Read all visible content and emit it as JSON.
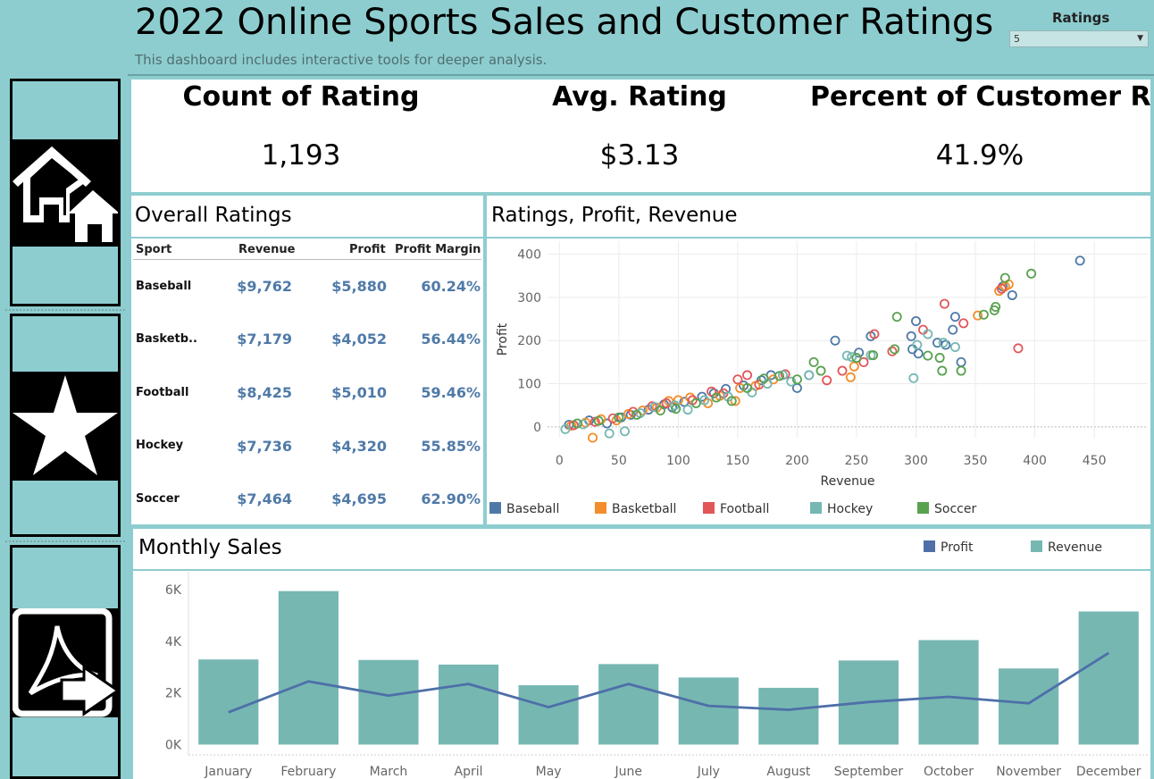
{
  "header": {
    "title": "2022 Online Sports Sales and Customer Ratings",
    "subtitle": "This dashboard includes interactive tools for deeper analysis.",
    "filter_label": "Ratings",
    "filter_value": "5"
  },
  "nav": {
    "icons": [
      "home-icon",
      "star-icon",
      "pdf-export-icon"
    ]
  },
  "kpis": [
    {
      "title": "Count of Rating",
      "value": "1,193"
    },
    {
      "title": "Avg. Rating",
      "value": "$3.13"
    },
    {
      "title": "Percent of Customer R..",
      "value": "41.9%"
    }
  ],
  "overall_ratings": {
    "title": "Overall Ratings",
    "columns": [
      "Sport",
      "Revenue",
      "Profit",
      "Profit Margin"
    ],
    "rows": [
      {
        "sport": "Baseball",
        "revenue": "$9,762",
        "profit": "$5,880",
        "margin": "60.24%"
      },
      {
        "sport": "Basketb..",
        "revenue": "$7,179",
        "profit": "$4,052",
        "margin": "56.44%"
      },
      {
        "sport": "Football",
        "revenue": "$8,425",
        "profit": "$5,010",
        "margin": "59.46%"
      },
      {
        "sport": "Hockey",
        "revenue": "$7,736",
        "profit": "$4,320",
        "margin": "55.85%"
      },
      {
        "sport": "Soccer",
        "revenue": "$7,464",
        "profit": "$4,695",
        "margin": "62.90%"
      }
    ]
  },
  "colors": {
    "background": "#8ecdcf",
    "baseball": "#4e79a7",
    "basketball": "#f28e2b",
    "football": "#e15759",
    "hockey": "#76b7b2",
    "soccer": "#59a14f",
    "profit_line": "#4e6fa8",
    "revenue_bar": "#76b7b2",
    "table_value": "#4f7aa8"
  },
  "chart_data": [
    {
      "type": "scatter",
      "title": "Ratings, Profit, Revenue",
      "xlabel": "Revenue",
      "ylabel": "Profit",
      "xlim": [
        -10,
        495
      ],
      "ylim": [
        -25,
        430
      ],
      "xticks": [
        0,
        50,
        100,
        150,
        200,
        250,
        300,
        350,
        400,
        450
      ],
      "yticks": [
        0,
        100,
        200,
        300,
        400
      ],
      "grid": true,
      "legend_position": "bottom",
      "series": [
        {
          "name": "Baseball",
          "color": "#4e79a7",
          "points": [
            [
              8,
              5
            ],
            [
              25,
              15
            ],
            [
              40,
              8
            ],
            [
              52,
              22
            ],
            [
              60,
              28
            ],
            [
              75,
              40
            ],
            [
              88,
              52
            ],
            [
              95,
              45
            ],
            [
              105,
              58
            ],
            [
              120,
              70
            ],
            [
              130,
              78
            ],
            [
              140,
              88
            ],
            [
              155,
              96
            ],
            [
              170,
              108
            ],
            [
              178,
              120
            ],
            [
              200,
              90
            ],
            [
              210,
              120
            ],
            [
              232,
              200
            ],
            [
              252,
              172
            ],
            [
              262,
              210
            ],
            [
              296,
              210
            ],
            [
              300,
              245
            ],
            [
              297,
              180
            ],
            [
              302,
              170
            ],
            [
              318,
              195
            ],
            [
              325,
              190
            ],
            [
              331,
              225
            ],
            [
              333,
              255
            ],
            [
              338,
              150
            ],
            [
              373,
              325
            ],
            [
              381,
              305
            ],
            [
              438,
              385
            ]
          ]
        },
        {
          "name": "Basketball",
          "color": "#f28e2b",
          "points": [
            [
              10,
              3
            ],
            [
              22,
              10
            ],
            [
              28,
              -25
            ],
            [
              35,
              18
            ],
            [
              48,
              15
            ],
            [
              58,
              30
            ],
            [
              70,
              38
            ],
            [
              82,
              45
            ],
            [
              92,
              60
            ],
            [
              100,
              62
            ],
            [
              110,
              68
            ],
            [
              125,
              55
            ],
            [
              135,
              72
            ],
            [
              148,
              60
            ],
            [
              152,
              90
            ],
            [
              165,
              95
            ],
            [
              180,
              110
            ],
            [
              245,
              115
            ],
            [
              248,
              140
            ],
            [
              352,
              258
            ],
            [
              370,
              315
            ],
            [
              375,
              325
            ],
            [
              378,
              330
            ]
          ]
        },
        {
          "name": "Football",
          "color": "#e15759",
          "points": [
            [
              12,
              4
            ],
            [
              30,
              12
            ],
            [
              45,
              20
            ],
            [
              62,
              35
            ],
            [
              78,
              48
            ],
            [
              90,
              55
            ],
            [
              112,
              62
            ],
            [
              128,
              82
            ],
            [
              138,
              78
            ],
            [
              150,
              110
            ],
            [
              158,
              120
            ],
            [
              168,
              98
            ],
            [
              190,
              122
            ],
            [
              225,
              108
            ],
            [
              238,
              130
            ],
            [
              256,
              150
            ],
            [
              265,
              215
            ],
            [
              280,
              175
            ],
            [
              306,
              225
            ],
            [
              324,
              285
            ],
            [
              340,
              240
            ],
            [
              372,
              320
            ],
            [
              386,
              182
            ]
          ]
        },
        {
          "name": "Hockey",
          "color": "#76b7b2",
          "points": [
            [
              5,
              -5
            ],
            [
              20,
              6
            ],
            [
              42,
              -15
            ],
            [
              55,
              -10
            ],
            [
              68,
              32
            ],
            [
              80,
              46
            ],
            [
              97,
              50
            ],
            [
              108,
              40
            ],
            [
              122,
              62
            ],
            [
              142,
              70
            ],
            [
              162,
              80
            ],
            [
              175,
              100
            ],
            [
              188,
              120
            ],
            [
              195,
              105
            ],
            [
              210,
              120
            ],
            [
              242,
              165
            ],
            [
              246,
              162
            ],
            [
              262,
              166
            ],
            [
              298,
              113
            ],
            [
              301,
              190
            ],
            [
              310,
              215
            ],
            [
              323,
              195
            ],
            [
              333,
              185
            ]
          ]
        },
        {
          "name": "Soccer",
          "color": "#59a14f",
          "points": [
            [
              15,
              8
            ],
            [
              33,
              14
            ],
            [
              50,
              22
            ],
            [
              65,
              28
            ],
            [
              85,
              38
            ],
            [
              98,
              42
            ],
            [
              115,
              55
            ],
            [
              132,
              68
            ],
            [
              145,
              60
            ],
            [
              158,
              90
            ],
            [
              172,
              112
            ],
            [
              185,
              118
            ],
            [
              200,
              110
            ],
            [
              214,
              150
            ],
            [
              220,
              130
            ],
            [
              250,
              160
            ],
            [
              264,
              166
            ],
            [
              282,
              180
            ],
            [
              284,
              255
            ],
            [
              310,
              165
            ],
            [
              320,
              160
            ],
            [
              322,
              130
            ],
            [
              338,
              130
            ],
            [
              357,
              260
            ],
            [
              366,
              270
            ],
            [
              367,
              278
            ],
            [
              375,
              345
            ],
            [
              397,
              355
            ]
          ]
        }
      ]
    },
    {
      "type": "bar",
      "title": "Monthly Sales",
      "categories": [
        "January",
        "February",
        "March",
        "April",
        "May",
        "June",
        "July",
        "August",
        "September",
        "October",
        "November",
        "December"
      ],
      "ylim": [
        -400,
        6700
      ],
      "yticks": [
        0,
        2000,
        4000,
        6000
      ],
      "ytick_labels": [
        "0K",
        "2K",
        "4K",
        "6K"
      ],
      "legend_position": "top-right",
      "series": [
        {
          "name": "Revenue",
          "type": "bar",
          "color": "#76b7b2",
          "values": [
            3300,
            5950,
            3280,
            3100,
            2300,
            3120,
            2600,
            2200,
            3260,
            4050,
            2950,
            5160
          ]
        },
        {
          "name": "Profit",
          "type": "line",
          "color": "#4e6fa8",
          "values": [
            1250,
            2450,
            1900,
            2350,
            1450,
            2350,
            1500,
            1350,
            1650,
            1850,
            1600,
            3550
          ]
        }
      ]
    }
  ]
}
